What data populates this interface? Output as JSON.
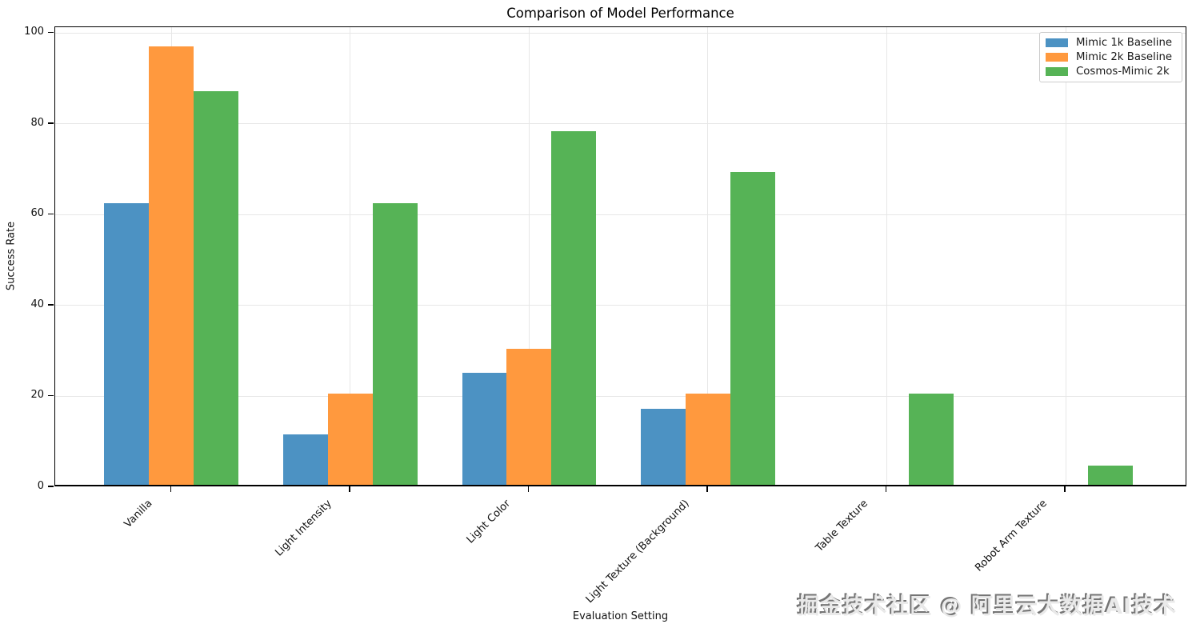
{
  "chart_data": {
    "type": "bar",
    "title": "Comparison of Model Performance",
    "xlabel": "Evaluation Setting",
    "ylabel": "Success Rate",
    "categories": [
      "Vanilla",
      "Light Intensity",
      "Light Color",
      "Light Texture (Background)",
      "Table Texture",
      "Robot Arm Texture"
    ],
    "series": [
      {
        "name": "Mimic 1k Baseline",
        "color": "#4C92C3",
        "values": [
          62.1,
          11.1,
          24.7,
          16.7,
          0,
          0
        ]
      },
      {
        "name": "Mimic 2k Baseline",
        "color": "#FF993E",
        "values": [
          96.6,
          20.0,
          30.0,
          20.0,
          0,
          0
        ]
      },
      {
        "name": "Cosmos-Mimic 2k",
        "color": "#56B356",
        "values": [
          86.7,
          62.1,
          77.8,
          68.9,
          20.0,
          4.2
        ]
      }
    ],
    "ylim": [
      0,
      101.3
    ],
    "yticks": [
      0,
      20,
      40,
      60,
      80,
      100
    ],
    "grid": true,
    "legend_position": "upper right",
    "axis_color": "#000000",
    "grid_color": "#e7e7e7"
  },
  "watermark": {
    "text": "掘金技术社区 @ 阿里云大数据AI技术",
    "color": "#e9e9e9",
    "shadow_color": "#757575"
  }
}
